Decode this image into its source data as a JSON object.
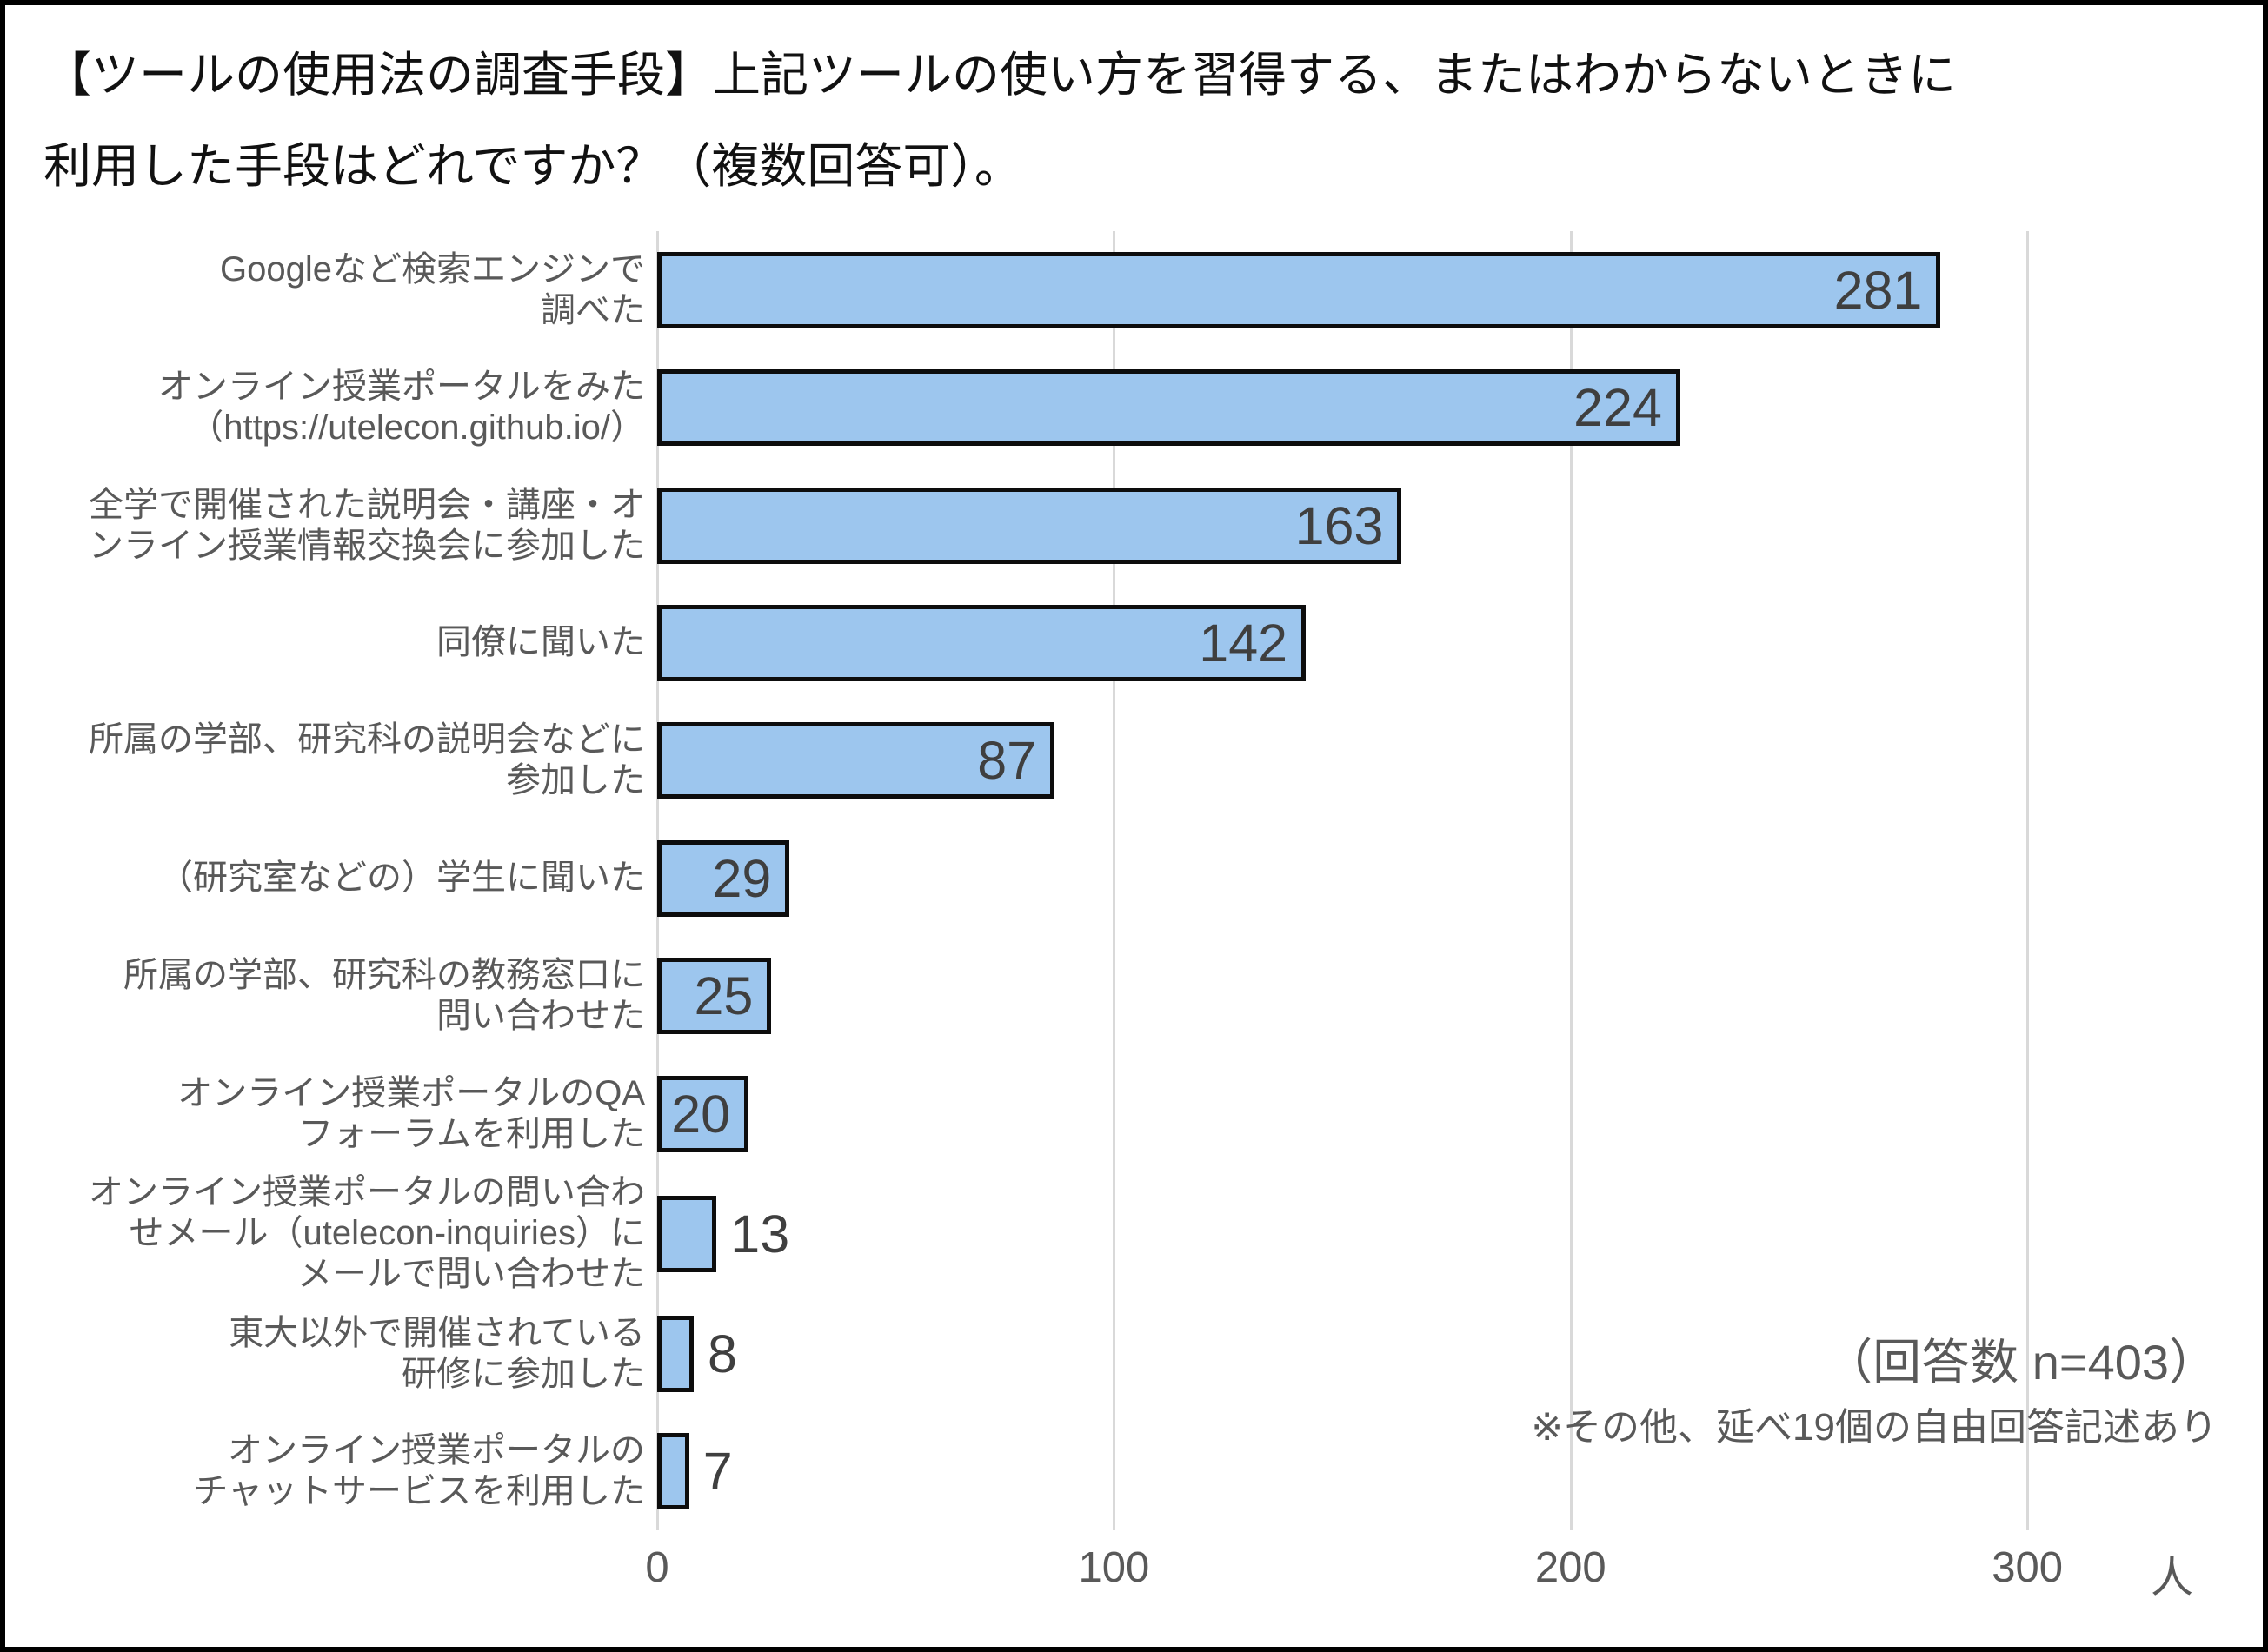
{
  "title": "【ツールの使用法の調査手段】上記ツールの使い方を習得する、またはわからないときに\n利用した手段はどれですか？（複数回答可）。",
  "chart_data": {
    "type": "bar",
    "orientation": "horizontal",
    "title": "【ツールの使用法の調査手段】上記ツールの使い方を習得する、またはわからないときに利用した手段はどれですか？（複数回答可）。",
    "categories": [
      "Googleなど検索エンジンで\n調べた",
      "オンライン授業ポータルをみた\n（https://utelecon.github.io/）",
      "全学で開催された説明会・講座・オ\nンライン授業情報交換会に参加した",
      "同僚に聞いた",
      "所属の学部、研究科の説明会などに\n参加した",
      "（研究室などの）学生に聞いた",
      "所属の学部、研究科の教務窓口に\n問い合わせた",
      "オンライン授業ポータルのQA\nフォーラムを利用した",
      "オンライン授業ポータルの問い合わ\nせメール（utelecon-inquiries）に\nメールで問い合わせた",
      "東大以外で開催されている\n研修に参加した",
      "オンライン授業ポータルの\nチャットサービスを利用した"
    ],
    "values": [
      281,
      224,
      163,
      142,
      87,
      29,
      25,
      20,
      13,
      8,
      7
    ],
    "xlabel": "",
    "ylabel": "",
    "unit": "人",
    "xticks": [
      0,
      100,
      200,
      300
    ],
    "xlim": [
      0,
      315
    ],
    "grid": true,
    "legend": "none",
    "colors": {
      "bar_fill": "#9DC6EE",
      "bar_border": "#0D0D0D",
      "value_label": "#3F3F3F",
      "category_label": "#595959",
      "axis_label": "#595959",
      "gridline": "#D9D9D9",
      "title": "#111111"
    },
    "annotations": [
      "（回答数 n=403）",
      "※その他、延べ19個の自由回答記述あり"
    ]
  }
}
